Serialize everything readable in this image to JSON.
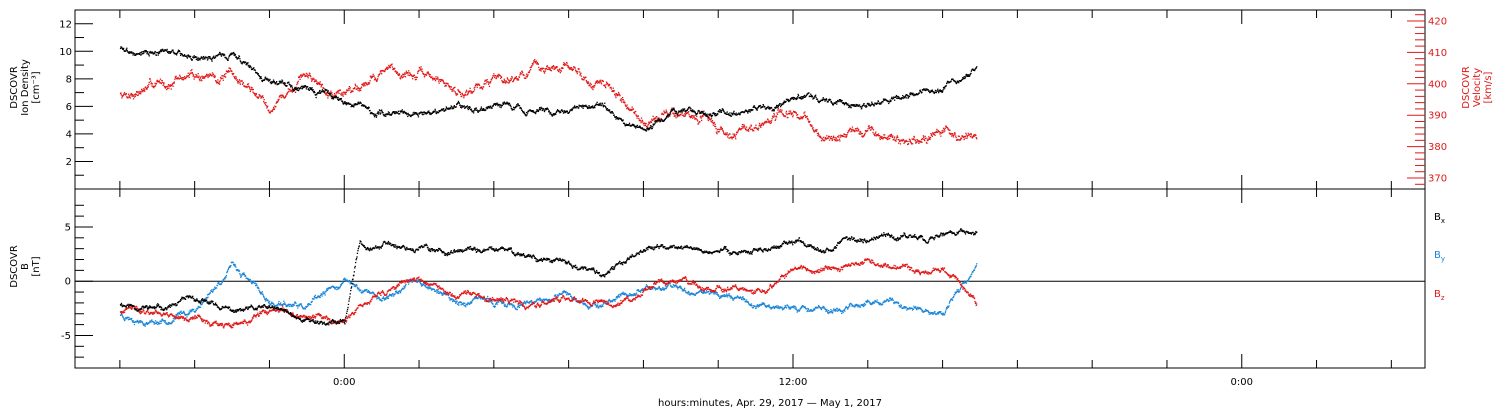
{
  "chart_data": [
    {
      "type": "scatter",
      "panel": "top",
      "ylabel_left": [
        "DSCOVR",
        "Ion Density",
        "[cm⁻³]"
      ],
      "ylabel_right": [
        "DSCOVR",
        "Velocity",
        "[km/s]"
      ],
      "ylim_left": [
        0,
        13
      ],
      "yticks_left": [
        2,
        4,
        6,
        8,
        10,
        12
      ],
      "ylim_right": [
        366.5,
        423.5
      ],
      "yticks_right": [
        370,
        380,
        390,
        400,
        410,
        420
      ],
      "right_axis_color": "#e01818",
      "series": [
        {
          "axis": "left",
          "color": "#000000",
          "x_hours": [
            -6,
            -5,
            -4,
            -3,
            -2,
            -1,
            0,
            1,
            2,
            3,
            4,
            5,
            6,
            7,
            8,
            9,
            10,
            11,
            12,
            13,
            14,
            15,
            16,
            16.9
          ],
          "values": [
            10.3,
            9.9,
            9.7,
            9.8,
            8.1,
            7.3,
            6.6,
            5.4,
            5.7,
            6.2,
            6.0,
            5.9,
            5.9,
            5.7,
            4.5,
            5.7,
            5.6,
            6.1,
            6.6,
            6.5,
            6.2,
            6.6,
            7.4,
            8.8
          ]
        },
        {
          "axis": "right",
          "color": "#e01818",
          "x_hours": [
            -6,
            -5,
            -4,
            -3,
            -2,
            -1,
            0,
            1,
            2,
            3,
            4,
            5,
            6,
            7,
            8,
            9,
            10,
            11,
            12,
            13,
            14,
            15,
            16,
            16.9
          ],
          "values": [
            397,
            400,
            403,
            402,
            394,
            402,
            398,
            405,
            403,
            398,
            402,
            405,
            404,
            399,
            389,
            391,
            386,
            386,
            390,
            382,
            385,
            382,
            383,
            384
          ]
        }
      ]
    },
    {
      "type": "scatter",
      "panel": "bottom",
      "ylabel": [
        "DSCOVR",
        "B",
        "[nT]"
      ],
      "ylim": [
        -8,
        8.5
      ],
      "yticks": [
        -5,
        0,
        5
      ],
      "zero_line": true,
      "series": [
        {
          "name": "Bx",
          "label_main": "B",
          "label_sub": "x",
          "color": "#000000",
          "x_hours": [
            -6,
            -5,
            -4,
            -3,
            -2,
            -1,
            0,
            0.4,
            1,
            2,
            3,
            4,
            5,
            6,
            7,
            8,
            9,
            10,
            11,
            12,
            13,
            14,
            15,
            16,
            16.9
          ],
          "values": [
            -2.0,
            -2.5,
            -1.8,
            -2.8,
            -2.6,
            -3.5,
            -3.8,
            3.6,
            3.5,
            3.2,
            2.7,
            2.8,
            2.5,
            1.5,
            0.5,
            3.3,
            3.2,
            2.8,
            3.0,
            3.4,
            3.5,
            4.1,
            4.2,
            4.5,
            4.5
          ]
        },
        {
          "name": "By",
          "label_main": "B",
          "label_sub": "y",
          "color": "#1a85d8",
          "x_hours": [
            -6,
            -5,
            -4,
            -3,
            -2,
            -1,
            0,
            1,
            2,
            3,
            4,
            5,
            6,
            7,
            8,
            9,
            10,
            11,
            12,
            13,
            14,
            15,
            16,
            16.9
          ],
          "values": [
            -3.0,
            -3.5,
            -2.5,
            1.5,
            -2.0,
            -2.5,
            0.0,
            -1.5,
            0.2,
            -1.8,
            -2.0,
            -2.3,
            -1.5,
            -2.0,
            -0.5,
            -0.5,
            -1.0,
            -2.0,
            -2.2,
            -2.5,
            -2.0,
            -2.5,
            -2.8,
            1.5
          ]
        },
        {
          "name": "Bz",
          "label_main": "B",
          "label_sub": "z",
          "color": "#e01818",
          "x_hours": [
            -6,
            -5,
            -4,
            -3,
            -2,
            -1,
            0,
            1,
            2,
            3,
            4,
            5,
            6,
            7,
            8,
            9,
            10,
            11,
            12,
            13,
            14,
            15,
            16,
            16.9
          ],
          "values": [
            -2.8,
            -2.6,
            -3.2,
            -4.2,
            -3.0,
            -3.3,
            -3.5,
            -1.0,
            0.5,
            -1.5,
            -2.0,
            -2.2,
            -1.5,
            -2.0,
            -1.0,
            0.0,
            -0.8,
            -1.2,
            1.0,
            1.5,
            2.0,
            1.0,
            1.0,
            -2.0
          ]
        }
      ]
    }
  ],
  "x_axis": {
    "range_hours": [
      -7.2,
      28.9
    ],
    "major_ticks": [
      {
        "hours": 0,
        "label": "0:00"
      },
      {
        "hours": 12,
        "label": "12:00"
      },
      {
        "hours": 24,
        "label": "0:00"
      }
    ],
    "minor_tick_step_hours": 2,
    "xlabel": "hours:minutes, Apr. 29, 2017 — May  1, 2017"
  }
}
